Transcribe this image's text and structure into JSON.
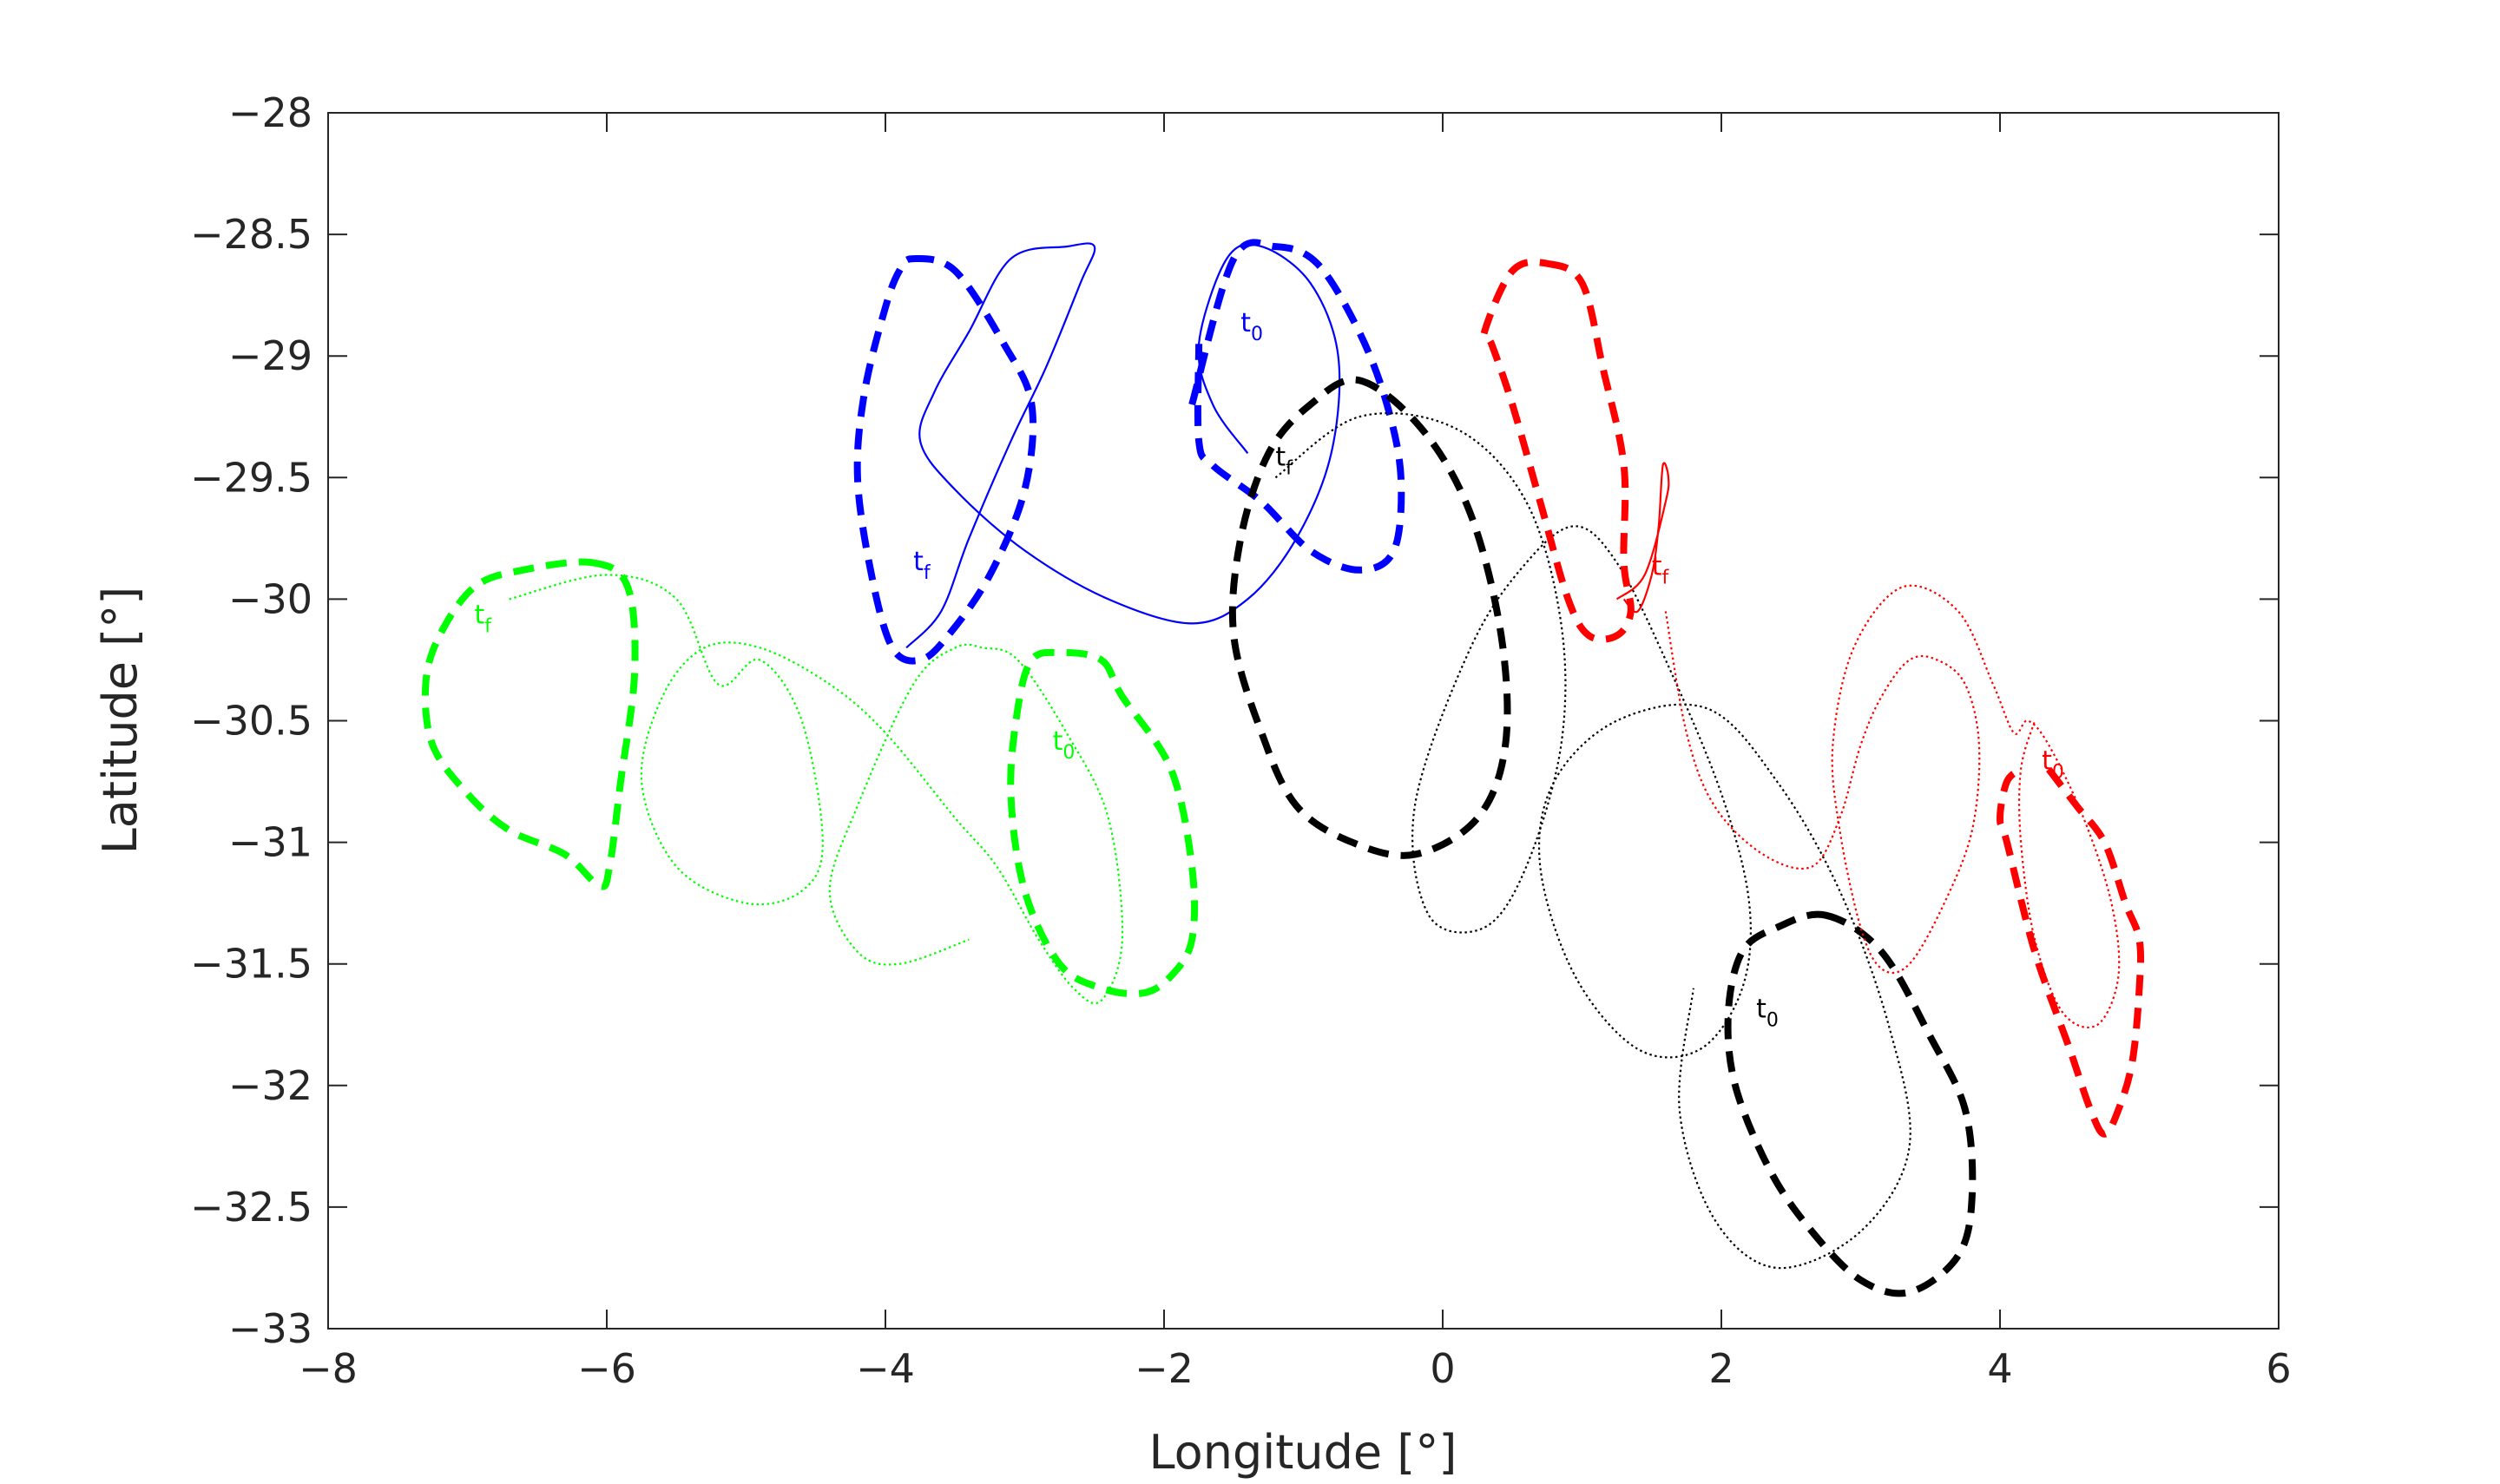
{
  "chart_data": {
    "type": "line",
    "title": "",
    "xlabel": "Longitude [°]",
    "ylabel": "Latitude [°]",
    "xlim": [
      -8,
      6
    ],
    "ylim": [
      -33,
      -28
    ],
    "xticks": [
      -8,
      -6,
      -4,
      -2,
      0,
      2,
      4,
      6
    ],
    "yticks": [
      -28,
      -28.5,
      -29,
      -29.5,
      -30,
      -30.5,
      -31,
      -31.5,
      -32,
      -32.5,
      -33
    ],
    "xtick_labels": [
      "−8",
      "−6",
      "−4",
      "−2",
      "0",
      "2",
      "4",
      "6"
    ],
    "ytick_labels": [
      "−28",
      "−28.5",
      "−29",
      "−29.5",
      "−30",
      "−30.5",
      "−31",
      "−31.5",
      "−32",
      "−32.5",
      "−33"
    ],
    "grid": false,
    "box": true,
    "series": [
      {
        "color": "#00ff00",
        "style": "dashed",
        "width": "thick",
        "closed": true,
        "x": [
          -6.1,
          -5.85,
          -5.8,
          -5.9,
          -5.98,
          -6.05,
          -6.3,
          -6.7,
          -7.0,
          -7.25,
          -7.3,
          -7.2,
          -6.95,
          -6.6
        ],
        "y": [
          -29.85,
          -29.95,
          -30.3,
          -30.75,
          -31.1,
          -31.18,
          -31.05,
          -30.95,
          -30.8,
          -30.6,
          -30.35,
          -30.15,
          -29.95,
          -29.88
        ]
      },
      {
        "color": "#00ff00",
        "style": "dotted",
        "width": "thin",
        "closed": false,
        "x": [
          -6.7,
          -6.0,
          -5.5,
          -5.2,
          -4.9,
          -4.6,
          -4.45,
          -4.6,
          -5.0,
          -5.5,
          -5.75,
          -5.6,
          -5.3,
          -4.9,
          -4.4,
          -4.0,
          -3.5,
          -3.2,
          -2.9,
          -2.65,
          -2.45,
          -2.3,
          -2.4,
          -2.7,
          -3.05,
          -3.3,
          -3.5,
          -3.8,
          -4.2,
          -4.4,
          -4.2,
          -3.9,
          -3.4
        ],
        "y": [
          -30.0,
          -29.9,
          -30.0,
          -30.35,
          -30.25,
          -30.5,
          -31.0,
          -31.2,
          -31.25,
          -31.1,
          -30.75,
          -30.4,
          -30.2,
          -30.2,
          -30.35,
          -30.55,
          -30.9,
          -31.1,
          -31.4,
          -31.6,
          -31.65,
          -31.4,
          -30.9,
          -30.55,
          -30.25,
          -30.2,
          -30.2,
          -30.35,
          -30.85,
          -31.2,
          -31.45,
          -31.5,
          -31.4
        ]
      },
      {
        "color": "#00ff00",
        "style": "dashed",
        "width": "thick",
        "closed": true,
        "x": [
          -2.45,
          -2.3,
          -1.95,
          -1.8,
          -1.8,
          -1.95,
          -2.15,
          -2.45,
          -2.75,
          -3.0,
          -3.1,
          -3.05,
          -2.95,
          -2.75
        ],
        "y": [
          -30.25,
          -30.4,
          -30.7,
          -31.1,
          -31.4,
          -31.55,
          -31.62,
          -31.6,
          -31.5,
          -31.2,
          -30.8,
          -30.45,
          -30.25,
          -30.22
        ]
      },
      {
        "color": "#0000ff",
        "style": "dashed",
        "width": "thick",
        "closed": true,
        "x": [
          -3.8,
          -3.5,
          -3.15,
          -2.95,
          -3.0,
          -3.25,
          -3.55,
          -3.75,
          -3.95,
          -4.1,
          -4.2,
          -4.15,
          -4.0,
          -3.9
        ],
        "y": [
          -28.6,
          -28.65,
          -28.95,
          -29.2,
          -29.55,
          -29.9,
          -30.15,
          -30.25,
          -30.2,
          -29.9,
          -29.5,
          -29.15,
          -28.8,
          -28.65
        ]
      },
      {
        "color": "#0000ff",
        "style": "solid",
        "width": "thin",
        "closed": false,
        "x": [
          -3.85,
          -3.6,
          -3.4,
          -3.1,
          -2.85,
          -2.6,
          -2.5,
          -2.7,
          -3.1,
          -3.4,
          -3.65,
          -3.75,
          -3.5,
          -3.0,
          -2.4,
          -1.8,
          -1.4,
          -1.05,
          -0.8,
          -0.75,
          -0.95,
          -1.3,
          -1.55,
          -1.75,
          -1.65,
          -1.4
        ],
        "y": [
          -30.2,
          -30.05,
          -29.75,
          -29.35,
          -29.05,
          -28.7,
          -28.55,
          -28.55,
          -28.6,
          -28.9,
          -29.15,
          -29.35,
          -29.55,
          -29.8,
          -30.0,
          -30.1,
          -30.0,
          -29.75,
          -29.4,
          -29.0,
          -28.7,
          -28.55,
          -28.6,
          -28.95,
          -29.2,
          -29.4
        ]
      },
      {
        "color": "#0000ff",
        "style": "dashed",
        "width": "thick",
        "closed": false,
        "x": [
          -1.8,
          -1.5,
          -1.2,
          -0.9,
          -0.6,
          -0.4,
          -0.3,
          -0.35,
          -0.6,
          -0.95,
          -1.3,
          -1.65,
          -1.75,
          -1.75
        ],
        "y": [
          -29.2,
          -28.6,
          -28.55,
          -28.62,
          -28.9,
          -29.2,
          -29.5,
          -29.8,
          -29.88,
          -29.8,
          -29.6,
          -29.45,
          -29.35,
          -28.95
        ]
      },
      {
        "color": "#000000",
        "style": "dashed",
        "width": "thick",
        "closed": true,
        "x": [
          -0.6,
          -0.15,
          0.2,
          0.42,
          0.45,
          0.25,
          -0.2,
          -0.65,
          -1.05,
          -1.3,
          -1.5,
          -1.45,
          -1.25,
          -0.95
        ],
        "y": [
          -29.1,
          -29.3,
          -29.65,
          -30.15,
          -30.6,
          -30.9,
          -31.05,
          -31.0,
          -30.85,
          -30.55,
          -30.15,
          -29.75,
          -29.4,
          -29.2
        ]
      },
      {
        "color": "#000000",
        "style": "dotted",
        "width": "thin",
        "closed": false,
        "x": [
          -1.2,
          -0.6,
          0.1,
          0.6,
          0.85,
          0.85,
          0.6,
          0.3,
          -0.1,
          -0.2,
          0.2,
          0.6,
          0.95,
          1.25,
          1.6,
          2.0,
          2.2,
          2.15,
          1.85,
          1.4,
          0.95,
          0.7,
          0.8,
          1.25,
          1.9,
          2.4,
          2.85,
          3.2,
          3.35,
          3.0,
          2.4,
          1.95,
          1.7,
          1.8
        ],
        "y": [
          -29.5,
          -29.25,
          -29.3,
          -29.6,
          -30.1,
          -30.6,
          -31.1,
          -31.35,
          -31.3,
          -30.85,
          -30.2,
          -29.85,
          -29.7,
          -29.85,
          -30.25,
          -30.8,
          -31.25,
          -31.6,
          -31.85,
          -31.85,
          -31.55,
          -31.1,
          -30.75,
          -30.5,
          -30.45,
          -30.75,
          -31.2,
          -31.75,
          -32.25,
          -32.6,
          -32.75,
          -32.55,
          -32.1,
          -31.6
        ]
      },
      {
        "color": "#000000",
        "style": "dashed",
        "width": "thick",
        "closed": true,
        "x": [
          2.75,
          3.15,
          3.5,
          3.75,
          3.8,
          3.7,
          3.35,
          3.0,
          2.65,
          2.35,
          2.1,
          2.05,
          2.15,
          2.4
        ],
        "y": [
          -31.3,
          -31.45,
          -31.8,
          -32.1,
          -32.45,
          -32.7,
          -32.85,
          -32.8,
          -32.6,
          -32.35,
          -32.0,
          -31.7,
          -31.45,
          -31.35
        ]
      },
      {
        "color": "#ff0000",
        "style": "dashed",
        "width": "thick",
        "closed": true,
        "x": [
          0.75,
          1.0,
          1.15,
          1.3,
          1.3,
          1.35,
          1.25,
          1.05,
          0.9,
          0.7,
          0.5,
          0.35,
          0.3,
          0.5
        ],
        "y": [
          -28.62,
          -28.7,
          -29.05,
          -29.45,
          -29.85,
          -30.05,
          -30.15,
          -30.15,
          -30.0,
          -29.6,
          -29.2,
          -28.95,
          -28.9,
          -28.65
        ]
      },
      {
        "color": "#ff0000",
        "style": "solid",
        "width": "thin",
        "closed": false,
        "x": [
          1.25,
          1.45,
          1.6,
          1.62,
          1.58,
          1.55,
          1.5,
          1.4,
          1.3
        ],
        "y": [
          -30.0,
          -29.9,
          -29.6,
          -29.5,
          -29.45,
          -29.7,
          -29.9,
          -30.05,
          -30.0
        ]
      },
      {
        "color": "#ff0000",
        "style": "dotted",
        "width": "thin",
        "closed": false,
        "x": [
          1.6,
          1.75,
          1.95,
          2.3,
          2.65,
          2.85,
          3.0,
          3.15,
          3.35,
          3.55,
          3.75,
          3.85,
          3.8,
          3.6,
          3.35,
          3.15,
          3.0,
          2.85,
          2.8,
          2.95,
          3.3,
          3.7,
          3.95,
          4.1,
          4.2,
          4.35,
          4.6,
          4.8,
          4.85,
          4.7,
          4.45,
          4.25,
          4.15,
          4.15,
          4.25
        ],
        "y": [
          -30.05,
          -30.55,
          -30.85,
          -31.05,
          -31.1,
          -30.9,
          -30.6,
          -30.4,
          -30.25,
          -30.25,
          -30.35,
          -30.6,
          -30.95,
          -31.25,
          -31.5,
          -31.52,
          -31.35,
          -30.95,
          -30.6,
          -30.2,
          -29.95,
          -30.05,
          -30.35,
          -30.55,
          -30.5,
          -30.6,
          -30.9,
          -31.25,
          -31.55,
          -31.75,
          -31.7,
          -31.4,
          -31.0,
          -30.7,
          -30.5
        ]
      },
      {
        "color": "#ff0000",
        "style": "dashed",
        "width": "thick",
        "closed": false,
        "x": [
          4.35,
          4.55,
          4.75,
          4.9,
          5.0,
          5.0,
          4.95,
          4.85,
          4.75,
          4.65,
          4.5,
          4.25,
          4.05,
          4.0,
          4.05,
          4.15
        ],
        "y": [
          -30.7,
          -30.85,
          -31.0,
          -31.25,
          -31.4,
          -31.6,
          -31.9,
          -32.1,
          -32.2,
          -32.1,
          -31.85,
          -31.45,
          -31.0,
          -30.9,
          -30.75,
          -30.7
        ]
      }
    ],
    "annotations": [
      {
        "text": "t",
        "sub": "f",
        "x": -6.95,
        "y": -30.1,
        "color": "#00ff00"
      },
      {
        "text": "t",
        "sub": "0",
        "x": -2.8,
        "y": -30.62,
        "color": "#00ff00"
      },
      {
        "text": "t",
        "sub": "f",
        "x": -3.8,
        "y": -29.88,
        "color": "#0000ff"
      },
      {
        "text": "t",
        "sub": "0",
        "x": -1.45,
        "y": -28.9,
        "color": "#0000ff"
      },
      {
        "text": "t",
        "sub": "f",
        "x": -1.2,
        "y": -29.45,
        "color": "#000000"
      },
      {
        "text": "t",
        "sub": "0",
        "x": 2.25,
        "y": -31.72,
        "color": "#000000"
      },
      {
        "text": "t",
        "sub": "f",
        "x": 1.5,
        "y": -29.9,
        "color": "#ff0000"
      },
      {
        "text": "t",
        "sub": "0",
        "x": 4.3,
        "y": -30.7,
        "color": "#ff0000"
      }
    ]
  }
}
